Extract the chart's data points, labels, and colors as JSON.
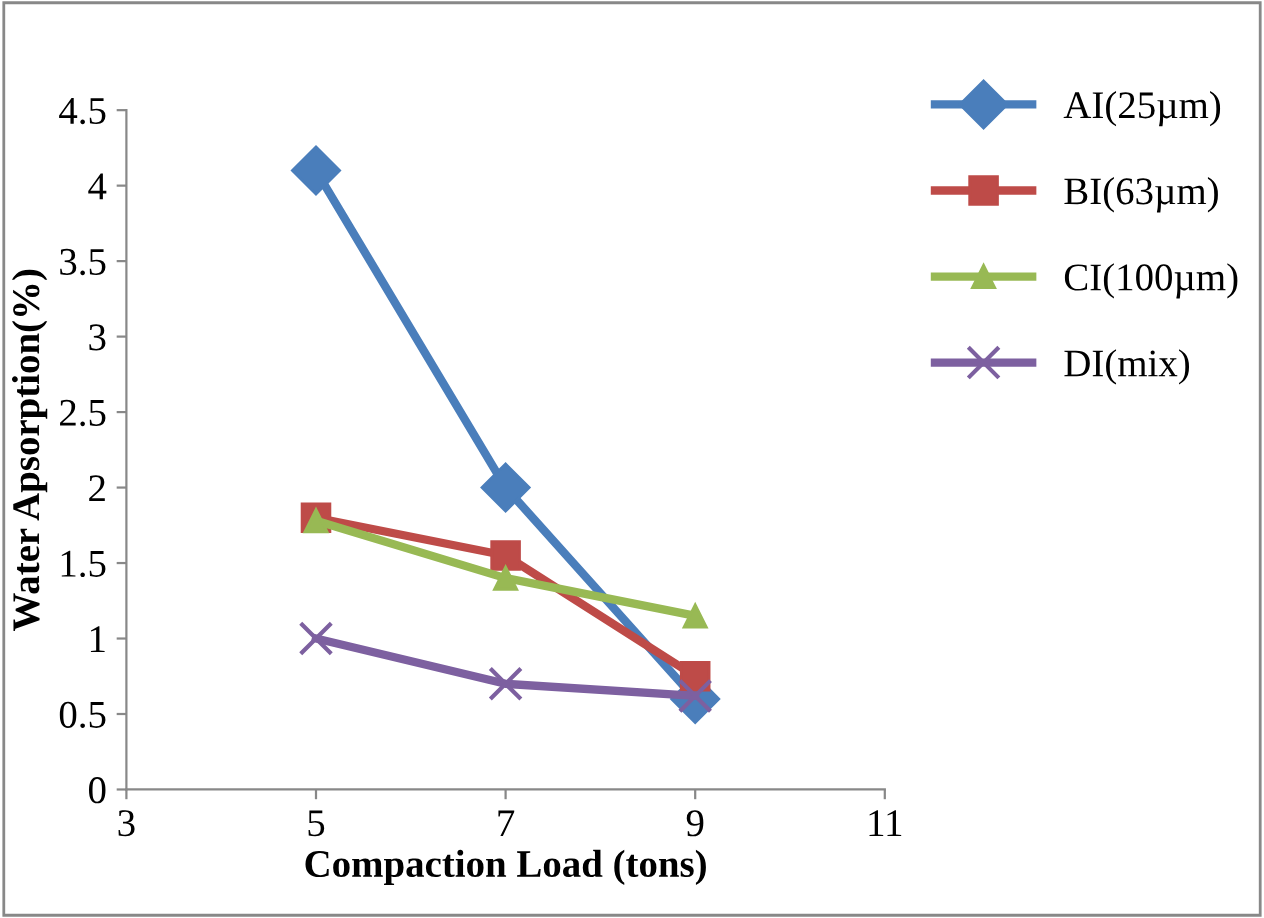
{
  "chart_data": {
    "type": "line",
    "xlabel": "Compaction Load (tons)",
    "ylabel": "Water Apsorption(%)",
    "x": [
      5,
      7,
      9
    ],
    "series": [
      {
        "name": "AI(25µm)",
        "color": "#4a7ebb",
        "values": [
          4.1,
          2.0,
          0.6
        ],
        "marker": "diamond"
      },
      {
        "name": "BI(63µm)",
        "color": "#be4b48",
        "values": [
          1.8,
          1.55,
          0.75
        ],
        "marker": "square"
      },
      {
        "name": "CI(100µm)",
        "color": "#98b954",
        "values": [
          1.78,
          1.4,
          1.15
        ],
        "marker": "triangle"
      },
      {
        "name": "DI(mix)",
        "color": "#7d60a0",
        "values": [
          1.0,
          0.7,
          0.62
        ],
        "marker": "cross"
      }
    ],
    "xlim": [
      3,
      11
    ],
    "xticks": [
      3,
      5,
      7,
      9,
      11
    ],
    "ylim": [
      0,
      4.5
    ],
    "yticks": [
      0,
      0.5,
      1,
      1.5,
      2,
      2.5,
      3,
      3.5,
      4,
      4.5
    ],
    "grid": false,
    "legend": "top right",
    "line_style": "solid"
  }
}
